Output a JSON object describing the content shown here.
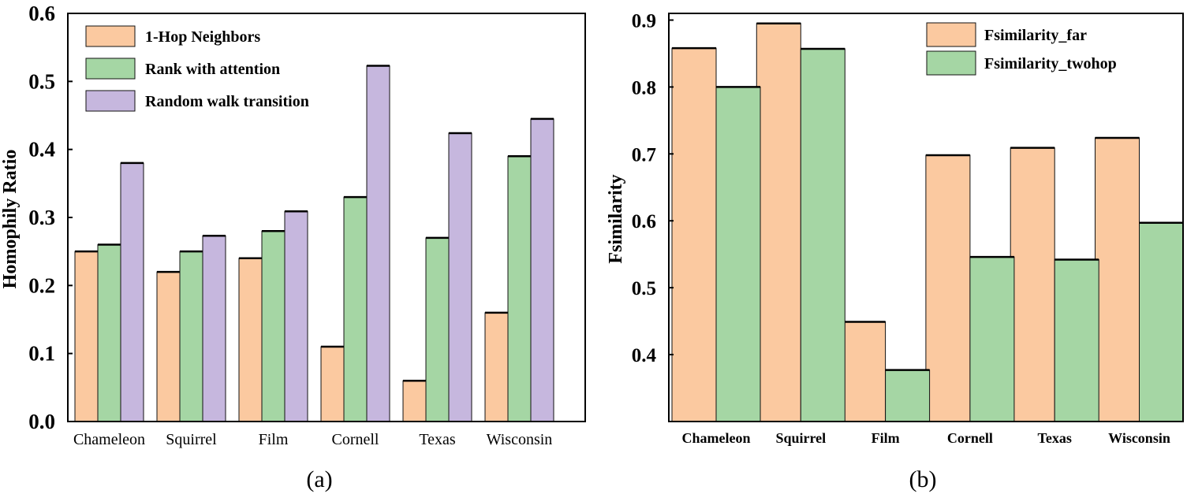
{
  "colors": {
    "orange": "#FBC9A0",
    "green": "#A5D6A4",
    "purple": "#C6B7DE",
    "stroke": "#000000"
  },
  "chart_data": [
    {
      "type": "bar",
      "caption": "(a)",
      "xlabel": "",
      "ylabel": "Homophily Ratio",
      "ylim": [
        0.0,
        0.6
      ],
      "yticks": [
        "0.0",
        "0.1",
        "0.2",
        "0.3",
        "0.4",
        "0.5",
        "0.6"
      ],
      "categories": [
        "Chameleon",
        "Squirrel",
        "Film",
        "Cornell",
        "Texas",
        "Wisconsin"
      ],
      "legend_position": "top-left",
      "grid": false,
      "series": [
        {
          "name": "1-Hop Neighbors",
          "color": "orange",
          "values": [
            0.25,
            0.22,
            0.24,
            0.11,
            0.06,
            0.16
          ]
        },
        {
          "name": "Rank with attention",
          "color": "green",
          "values": [
            0.26,
            0.25,
            0.28,
            0.33,
            0.27,
            0.39
          ]
        },
        {
          "name": "Random walk transition",
          "color": "purple",
          "values": [
            0.38,
            0.273,
            0.309,
            0.523,
            0.424,
            0.445
          ]
        }
      ]
    },
    {
      "type": "bar",
      "caption": "(b)",
      "xlabel": "",
      "ylabel": "Fsimilarity",
      "ylim": [
        0.3,
        0.91
      ],
      "yticks": [
        "0.4",
        "0.5",
        "0.6",
        "0.7",
        "0.8",
        "0.9"
      ],
      "categories": [
        "Chameleon",
        "Squirrel",
        "Film",
        "Cornell",
        "Texas",
        "Wisconsin"
      ],
      "legend_position": "top-right",
      "grid": false,
      "series": [
        {
          "name": "Fsimilarity_far",
          "color": "orange",
          "values": [
            0.858,
            0.895,
            0.449,
            0.698,
            0.709,
            0.724
          ]
        },
        {
          "name": "Fsimilarity_twohop",
          "color": "green",
          "values": [
            0.8,
            0.857,
            0.377,
            0.546,
            0.542,
            0.597
          ]
        }
      ]
    }
  ]
}
